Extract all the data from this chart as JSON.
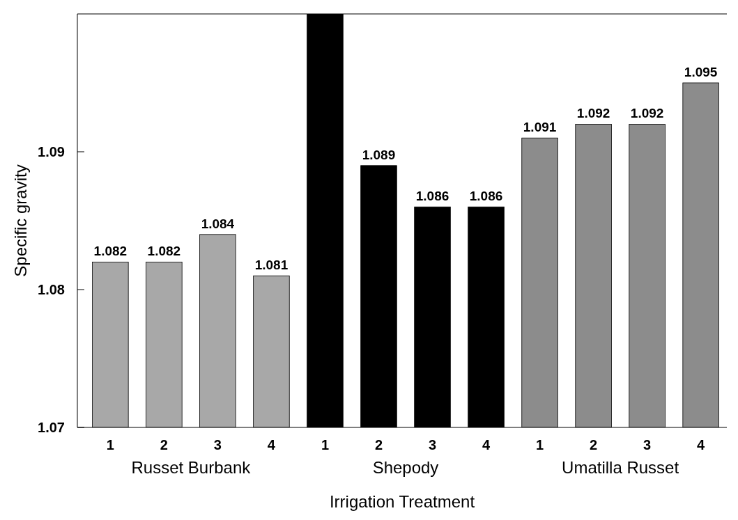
{
  "chart_data": {
    "type": "bar",
    "xlabel": "Irrigation Treatment",
    "ylabel": "Specific gravity",
    "categories": [
      "1",
      "2",
      "3",
      "4",
      "1",
      "2",
      "3",
      "4",
      "1",
      "2",
      "3",
      "4"
    ],
    "values": [
      1.082,
      1.082,
      1.084,
      1.081,
      1.1,
      1.089,
      1.086,
      1.086,
      1.091,
      1.092,
      1.092,
      1.095
    ],
    "value_labels": [
      "1.082",
      "1.082",
      "1.084",
      "1.081",
      null,
      "1.089",
      "1.086",
      "1.086",
      "1.091",
      "1.092",
      "1.092",
      "1.095"
    ],
    "colors": [
      "#a8a8a8",
      "#a8a8a8",
      "#a8a8a8",
      "#a8a8a8",
      "#000000",
      "#000000",
      "#000000",
      "#000000",
      "#8c8c8c",
      "#8c8c8c",
      "#8c8c8c",
      "#8c8c8c"
    ],
    "annotations": [
      "Russet Burbank",
      "Shepody",
      "Umatilla Russet"
    ],
    "ylim": [
      1.07,
      1.1
    ],
    "yticks": [
      1.07,
      1.08,
      1.09
    ]
  }
}
